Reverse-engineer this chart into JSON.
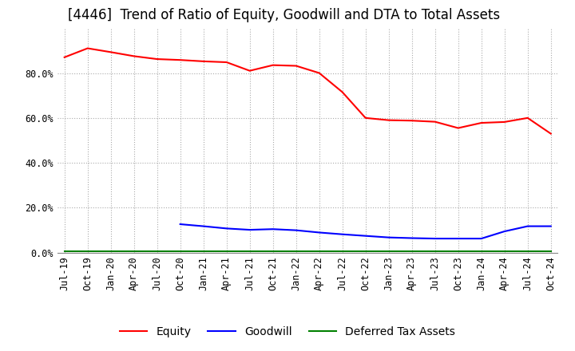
{
  "title": "[4446]  Trend of Ratio of Equity, Goodwill and DTA to Total Assets",
  "x_labels": [
    "Jul-19",
    "Oct-19",
    "Jan-20",
    "Apr-20",
    "Jul-20",
    "Oct-20",
    "Jan-21",
    "Apr-21",
    "Jul-21",
    "Oct-21",
    "Jan-22",
    "Apr-22",
    "Jul-22",
    "Oct-22",
    "Jan-23",
    "Apr-23",
    "Jul-23",
    "Oct-23",
    "Jan-24",
    "Apr-24",
    "Jul-24",
    "Oct-24"
  ],
  "equity": [
    0.87,
    0.91,
    0.893,
    0.875,
    0.862,
    0.858,
    0.852,
    0.848,
    0.81,
    0.835,
    0.832,
    0.8,
    0.715,
    0.6,
    0.59,
    0.588,
    0.583,
    0.555,
    0.578,
    0.582,
    0.6,
    0.53
  ],
  "goodwill": [
    null,
    null,
    null,
    null,
    null,
    0.127,
    0.118,
    0.108,
    0.102,
    0.105,
    0.1,
    0.09,
    0.082,
    0.075,
    0.068,
    0.065,
    0.063,
    0.063,
    0.063,
    0.095,
    0.118,
    0.118
  ],
  "dta": [
    0.005,
    0.005,
    0.005,
    0.005,
    0.005,
    0.005,
    0.005,
    0.005,
    0.005,
    0.005,
    0.005,
    0.005,
    0.005,
    0.005,
    0.005,
    0.005,
    0.005,
    0.005,
    0.005,
    0.005,
    0.005,
    0.005
  ],
  "equity_color": "#ff0000",
  "goodwill_color": "#0000ff",
  "dta_color": "#008000",
  "ylim": [
    0.0,
    1.0
  ],
  "yticks": [
    0.0,
    0.2,
    0.4,
    0.6,
    0.8
  ],
  "ytick_labels": [
    "0.0%",
    "20.0%",
    "40.0%",
    "60.0%",
    "80.0%"
  ],
  "legend_labels": [
    "Equity",
    "Goodwill",
    "Deferred Tax Assets"
  ],
  "bg_color": "#ffffff",
  "plot_bg_color": "#ffffff",
  "grid_color": "#aaaaaa",
  "title_fontsize": 12,
  "axis_fontsize": 8.5,
  "legend_fontsize": 10,
  "linewidth": 1.5
}
